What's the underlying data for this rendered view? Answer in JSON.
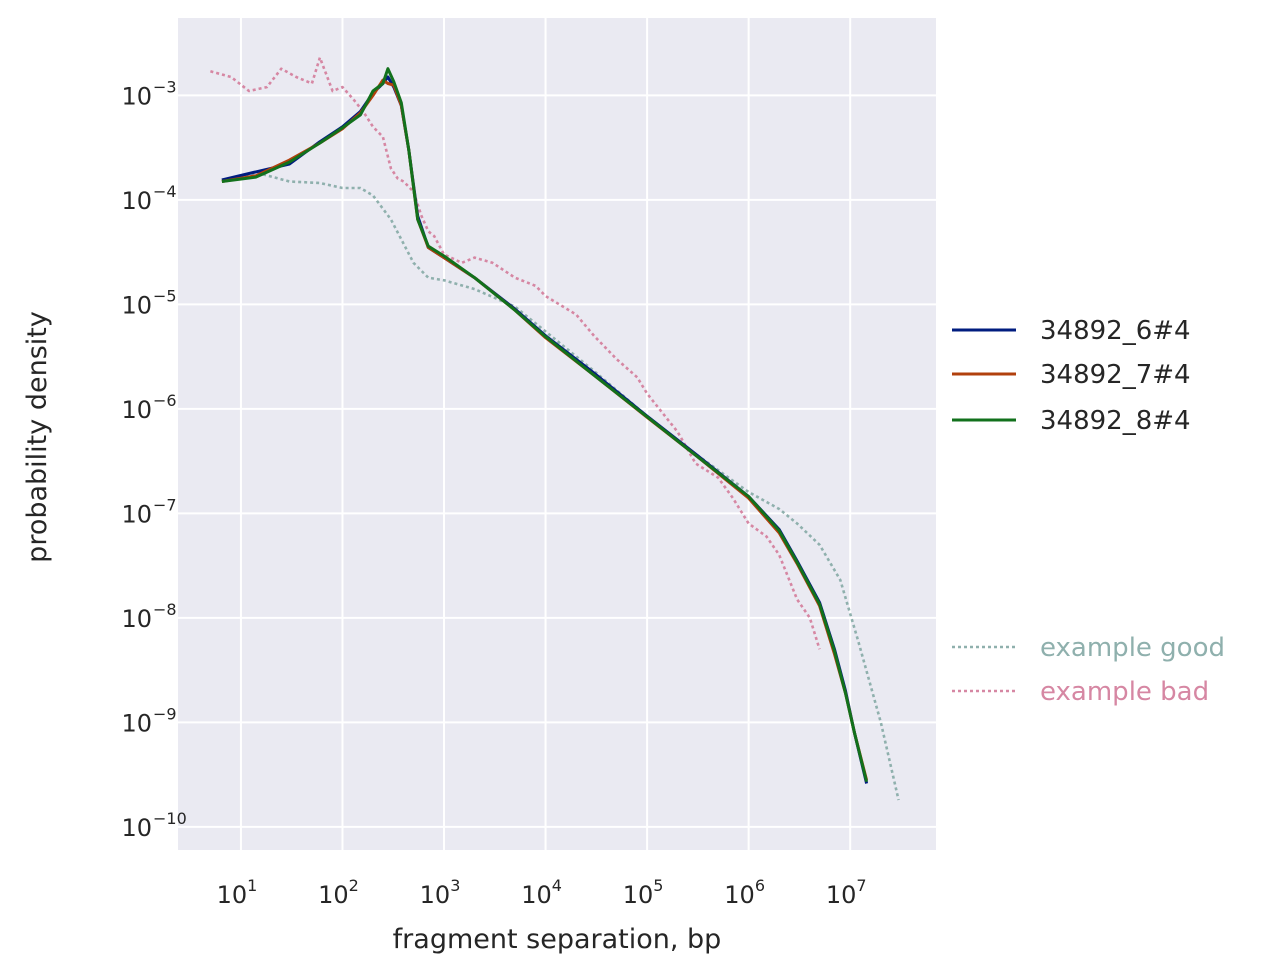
{
  "chart_data": {
    "type": "line",
    "xlabel": "fragment separation, bp",
    "ylabel": "probability density",
    "xscale": "log",
    "yscale": "log",
    "xlim": [
      2.4,
      70000000
    ],
    "ylim": [
      6e-11,
      0.0055
    ],
    "x_ticks": [
      {
        "value": 10,
        "base": "10",
        "exp": "1"
      },
      {
        "value": 100,
        "base": "10",
        "exp": "2"
      },
      {
        "value": 1000,
        "base": "10",
        "exp": "3"
      },
      {
        "value": 10000,
        "base": "10",
        "exp": "4"
      },
      {
        "value": 100000,
        "base": "10",
        "exp": "5"
      },
      {
        "value": 1000000,
        "base": "10",
        "exp": "6"
      },
      {
        "value": 10000000,
        "base": "10",
        "exp": "7"
      }
    ],
    "y_ticks": [
      {
        "value": 0.001,
        "base": "10",
        "exp": "−3"
      },
      {
        "value": 0.0001,
        "base": "10",
        "exp": "−4"
      },
      {
        "value": 1e-05,
        "base": "10",
        "exp": "−5"
      },
      {
        "value": 1e-06,
        "base": "10",
        "exp": "−6"
      },
      {
        "value": 1e-07,
        "base": "10",
        "exp": "−7"
      },
      {
        "value": 1e-08,
        "base": "10",
        "exp": "−8"
      },
      {
        "value": 1e-09,
        "base": "10",
        "exp": "−9"
      },
      {
        "value": 1e-10,
        "base": "10",
        "exp": "−10"
      }
    ],
    "grid": true,
    "legend_position": "right",
    "series": [
      {
        "name": "34892_6#4",
        "color": "#001c7f",
        "style": "solid",
        "x": [
          6.5,
          14,
          30,
          60,
          100,
          150,
          200,
          250,
          280,
          320,
          380,
          450,
          550,
          700,
          1000,
          2000,
          5000,
          10000,
          30000,
          100000,
          300000,
          1000000,
          2000000,
          3000000,
          5000000,
          7000000,
          9000000,
          11000000,
          14500000
        ],
        "y": [
          0.000155,
          0.000185,
          0.00022,
          0.00036,
          0.0005,
          0.0007,
          0.00105,
          0.0013,
          0.0015,
          0.0012,
          0.0008,
          0.0003,
          7e-05,
          3.5e-05,
          2.8e-05,
          1.8e-05,
          9e-06,
          5e-06,
          2.2e-06,
          8.5e-07,
          3.7e-07,
          1.45e-07,
          7e-08,
          3.5e-08,
          1.4e-08,
          5e-09,
          2e-09,
          8e-10,
          2.6e-10
        ]
      },
      {
        "name": "34892_7#4",
        "color": "#b1400d",
        "style": "solid",
        "x": [
          6.5,
          14,
          30,
          60,
          100,
          150,
          200,
          250,
          280,
          320,
          380,
          450,
          550,
          700,
          1000,
          2000,
          5000,
          10000,
          30000,
          100000,
          300000,
          1000000,
          2000000,
          3000000,
          5000000,
          7000000,
          9000000,
          11000000,
          14500000
        ],
        "y": [
          0.00015,
          0.00017,
          0.00024,
          0.00035,
          0.00048,
          0.00068,
          0.001,
          0.0014,
          0.0013,
          0.00125,
          0.0008,
          0.0003,
          6.5e-05,
          3.5e-05,
          2.8e-05,
          1.8e-05,
          8.8e-06,
          4.8e-06,
          2.1e-06,
          8.3e-07,
          3.6e-07,
          1.4e-07,
          6.5e-08,
          3.3e-08,
          1.3e-08,
          4.5e-09,
          1.9e-09,
          8e-10,
          2.8e-10
        ]
      },
      {
        "name": "34892_8#4",
        "color": "#12711c",
        "style": "solid",
        "x": [
          6.5,
          14,
          30,
          60,
          100,
          150,
          200,
          250,
          280,
          320,
          380,
          450,
          550,
          700,
          1000,
          2000,
          5000,
          10000,
          30000,
          100000,
          300000,
          1000000,
          2000000,
          3000000,
          5000000,
          7000000,
          9000000,
          11000000,
          14500000
        ],
        "y": [
          0.00015,
          0.000165,
          0.00023,
          0.00035,
          0.00049,
          0.00065,
          0.0011,
          0.0013,
          0.0018,
          0.00135,
          0.00085,
          0.0003,
          6.5e-05,
          3.6e-05,
          2.9e-05,
          1.8e-05,
          8.8e-06,
          4.9e-06,
          2.1e-06,
          8.4e-07,
          3.6e-07,
          1.45e-07,
          6.8e-08,
          3.4e-08,
          1.35e-08,
          4.8e-09,
          1.9e-09,
          8e-10,
          2.7e-10
        ]
      },
      {
        "name": "example good",
        "color": "#8fb0ad",
        "style": "dotted",
        "x": [
          6.5,
          15,
          30,
          60,
          100,
          150,
          200,
          300,
          500,
          700,
          1000,
          2000,
          5000,
          10000,
          30000,
          100000,
          300000,
          1000000,
          2000000,
          3000000,
          5000000,
          8000000,
          12000000,
          20000000,
          30000000
        ],
        "y": [
          0.000155,
          0.00018,
          0.00015,
          0.000145,
          0.00013,
          0.00013,
          0.00011,
          6.5e-05,
          2.5e-05,
          1.8e-05,
          1.7e-05,
          1.4e-05,
          9.5e-06,
          5.5e-06,
          2.3e-06,
          8.5e-07,
          3.7e-07,
          1.6e-07,
          1.1e-07,
          8e-08,
          5e-08,
          2.3e-08,
          6e-09,
          1e-09,
          1.8e-10
        ]
      },
      {
        "name": "example bad",
        "color": "#d687a3",
        "style": "dotted",
        "x": [
          5,
          8,
          12,
          18,
          25,
          35,
          50,
          60,
          80,
          100,
          130,
          160,
          200,
          250,
          300,
          350,
          400,
          500,
          600,
          700,
          800,
          1000,
          1500,
          2000,
          3000,
          5000,
          8000,
          10000,
          20000,
          30000,
          50000,
          80000,
          100000,
          200000,
          300000,
          500000,
          700000,
          1000000,
          1500000,
          2000000,
          3000000,
          4000000,
          5000000
        ],
        "y": [
          0.0017,
          0.0015,
          0.0011,
          0.0012,
          0.0018,
          0.0015,
          0.0013,
          0.0023,
          0.0011,
          0.0012,
          0.0009,
          0.0007,
          0.0005,
          0.0004,
          0.0002,
          0.00016,
          0.00015,
          0.00012,
          7e-05,
          5e-05,
          4.5e-05,
          3e-05,
          2.5e-05,
          2.8e-05,
          2.5e-05,
          1.8e-05,
          1.5e-05,
          1.2e-05,
          8e-06,
          5e-06,
          3e-06,
          2e-06,
          1.4e-06,
          6e-07,
          3e-07,
          2.2e-07,
          1.4e-07,
          8e-08,
          6e-08,
          4e-08,
          1.5e-08,
          1e-08,
          5e-09
        ]
      }
    ]
  }
}
